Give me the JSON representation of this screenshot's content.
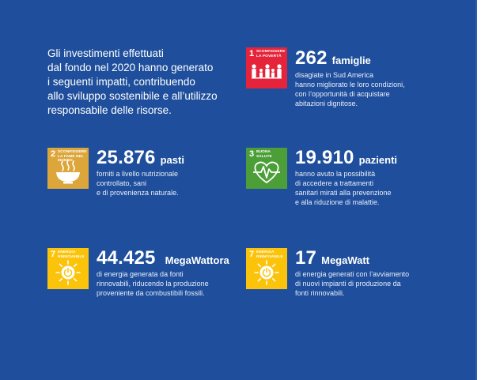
{
  "intro": "Gli investimenti effettuati\ndal fondo nel 2020 hanno generato\ni seguenti impatti, contribuendo\nallo sviluppo sostenibile e all’utilizzo\nresponsabile delle risorse.",
  "colors": {
    "background": "#1f4f9c",
    "sdg1": "#e5243b",
    "sdg2": "#dda63a",
    "sdg3": "#4c9f38",
    "sdg7": "#fcc30b"
  },
  "items": [
    {
      "sdg_number": "1",
      "sdg_label": "Sconfiggere la povertà",
      "icon": "family-icon",
      "value": "262",
      "unit": "famiglie",
      "description": "disagiate in Sud America\nhanno migliorato le loro condizioni,\ncon l’opportunità di acquistare\nabitazioni dignitose."
    },
    {
      "sdg_number": "2",
      "sdg_label": "Sconfiggere la fame nel mondo",
      "icon": "bowl-icon",
      "value": "25.876",
      "unit": "pasti",
      "description": "forniti a livello nutrizionale\ncontrollato, sani\ne di provenienza naturale."
    },
    {
      "sdg_number": "3",
      "sdg_label": "Buona salute",
      "icon": "heartbeat-icon",
      "value": "19.910",
      "unit": "pazienti",
      "description": "hanno avuto la possibilità\ndi accedere a trattamenti\nsanitari mirati alla prevenzione\ne alla riduzione di malattie."
    },
    {
      "sdg_number": "7",
      "sdg_label": "Energia rinnovabile",
      "icon": "sun-power-icon",
      "value": "44.425",
      "unit": "MegaWattora",
      "description": "di energia generata da fonti\nrinnovabili, riducendo la produzione\nproveniente da combustibili fossili."
    },
    {
      "sdg_number": "7",
      "sdg_label": "Energia rinnovabile",
      "icon": "sun-power-icon",
      "value": "17",
      "unit": "MegaWatt",
      "description": "di energia generati con l’avviamento\ndi nuovi impianti di produzione da\nfonti rinnovabili."
    }
  ]
}
